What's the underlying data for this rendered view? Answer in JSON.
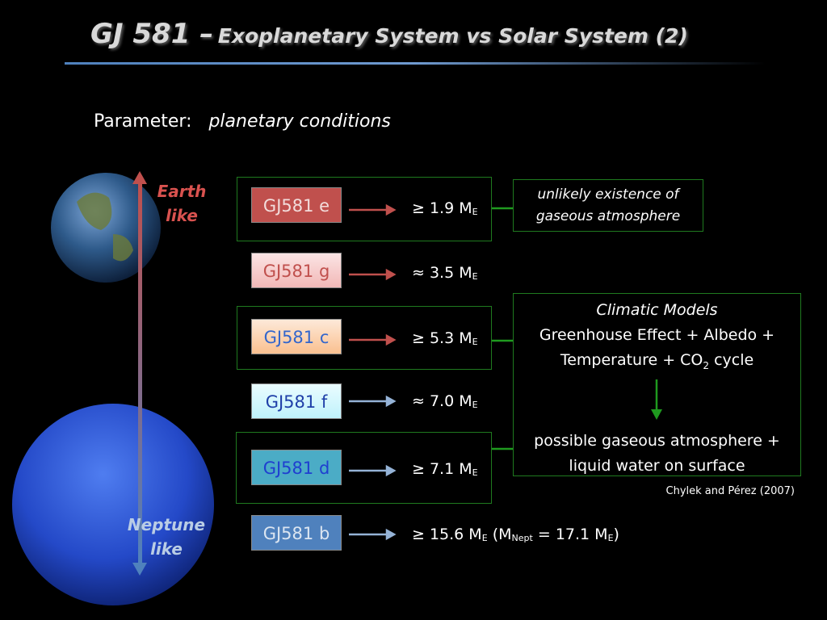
{
  "header": {
    "title_main": "GJ 581 –",
    "title_rest": "Exoplanetary System vs Solar System (2)"
  },
  "parameter": {
    "label": "Parameter:",
    "value": "planetary conditions"
  },
  "scale": {
    "top_label": [
      "Earth",
      "like"
    ],
    "bottom_label": [
      "Neptune",
      "like"
    ]
  },
  "planets": [
    {
      "name": "GJ581 e",
      "mass": "≥ 1.9 M",
      "mass_sub": "E"
    },
    {
      "name": "GJ581 g",
      "mass": "≈ 3.5 M",
      "mass_sub": "E"
    },
    {
      "name": "GJ581 c",
      "mass": "≥ 5.3 M",
      "mass_sub": "E"
    },
    {
      "name": "GJ581 f",
      "mass": "≈ 7.0 M",
      "mass_sub": "E"
    },
    {
      "name": "GJ581 d",
      "mass": "≥ 7.1 M",
      "mass_sub": "E"
    },
    {
      "name": "GJ581 b",
      "mass": "≥ 15.6 M",
      "mass_sub": "E",
      "note": {
        "open": "(M",
        "sub1": "Nept",
        "mid": "= 17.1 M",
        "sub2": "E",
        "close": ")"
      }
    }
  ],
  "note_box": [
    "unlikely existence of",
    "gaseous atmosphere"
  ],
  "climate_box": {
    "heading": "Climatic Models",
    "line1": "Greenhouse Effect + Albedo +",
    "line2": "Temperature + CO",
    "line2_sub": "2",
    "line2_end": "cycle",
    "result1": "possible gaseous atmosphere +",
    "result2": "liquid water on surface"
  },
  "citation": "Chylek and Pérez (2007)"
}
